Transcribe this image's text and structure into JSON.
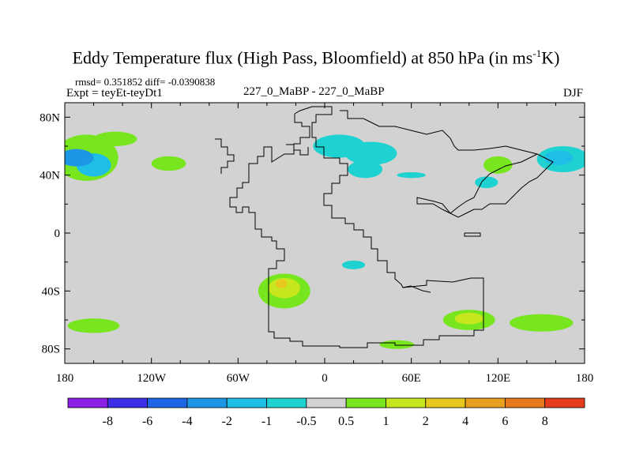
{
  "header": {
    "title_main": "Eddy Temperature flux (High Pass, Bloomfield) at 850 hPa (in ms",
    "title_sup": "-1",
    "title_end": "K)",
    "stats": "rmsd= 0.351852 diff= -0.0390838",
    "expt": "Expt = teyEt-teyDt1",
    "center": "227_0_MaBP - 227_0_MaBP",
    "season": "DJF"
  },
  "chart_data": {
    "type": "heatmap",
    "x_ticks": [
      "180",
      "120W",
      "60W",
      "0",
      "60E",
      "120E",
      "180"
    ],
    "x_tick_values": [
      -180,
      -120,
      -60,
      0,
      60,
      120,
      180
    ],
    "y_ticks": [
      "80N",
      "40N",
      "0",
      "40S",
      "80S"
    ],
    "y_tick_values": [
      80,
      40,
      0,
      -40,
      -80
    ],
    "xlim": [
      -180,
      180
    ],
    "ylim": [
      -90,
      90
    ],
    "colorbar_labels": [
      "-8",
      "-6",
      "-4",
      "-2",
      "-1",
      "-0.5",
      "0.5",
      "1",
      "2",
      "4",
      "6",
      "8"
    ],
    "colorbar_colors": [
      "#8c1ee6",
      "#3c2de6",
      "#1e64e6",
      "#1e96e6",
      "#1ebee6",
      "#1ed2d2",
      "#d2d2d2",
      "#78e61e",
      "#c8e61e",
      "#e6c81e",
      "#e6a01e",
      "#e6781e",
      "#e63c1e"
    ],
    "regions": [
      {
        "lon": -165,
        "lat": 52,
        "rx": 22,
        "ry": 16,
        "level": 7
      },
      {
        "lon": -160,
        "lat": 47,
        "rx": 12,
        "ry": 8,
        "level": 4
      },
      {
        "lon": -172,
        "lat": 52,
        "rx": 12,
        "ry": 6,
        "level": 3
      },
      {
        "lon": -108,
        "lat": 48,
        "rx": 12,
        "ry": 5,
        "level": 7
      },
      {
        "lon": -145,
        "lat": 65,
        "rx": 15,
        "ry": 5,
        "level": 7
      },
      {
        "lon": 10,
        "lat": 60,
        "rx": 18,
        "ry": 8,
        "level": 5
      },
      {
        "lon": 32,
        "lat": 55,
        "rx": 18,
        "ry": 8,
        "level": 5
      },
      {
        "lon": 28,
        "lat": 44,
        "rx": 12,
        "ry": 6,
        "level": 5
      },
      {
        "lon": 120,
        "lat": 47,
        "rx": 10,
        "ry": 6,
        "level": 7
      },
      {
        "lon": 112,
        "lat": 35,
        "rx": 8,
        "ry": 4,
        "level": 5
      },
      {
        "lon": 165,
        "lat": 51,
        "rx": 18,
        "ry": 9,
        "level": 5
      },
      {
        "lon": 162,
        "lat": 52,
        "rx": 10,
        "ry": 5,
        "level": 4
      },
      {
        "lon": 60,
        "lat": 40,
        "rx": 10,
        "ry": 2,
        "level": 5
      },
      {
        "lon": -28,
        "lat": -40,
        "rx": 18,
        "ry": 12,
        "level": 7
      },
      {
        "lon": -28,
        "lat": -38,
        "rx": 11,
        "ry": 7,
        "level": 8
      },
      {
        "lon": -30,
        "lat": -35,
        "rx": 4,
        "ry": 3,
        "level": 9
      },
      {
        "lon": 20,
        "lat": -22,
        "rx": 8,
        "ry": 3,
        "level": 5
      },
      {
        "lon": 100,
        "lat": -60,
        "rx": 18,
        "ry": 7,
        "level": 7
      },
      {
        "lon": 100,
        "lat": -59,
        "rx": 10,
        "ry": 4,
        "level": 8
      },
      {
        "lon": 150,
        "lat": -62,
        "rx": 22,
        "ry": 6,
        "level": 7
      },
      {
        "lon": -160,
        "lat": -64,
        "rx": 18,
        "ry": 5,
        "level": 7
      },
      {
        "lon": 50,
        "lat": -77,
        "rx": 12,
        "ry": 3,
        "level": 7
      }
    ]
  }
}
